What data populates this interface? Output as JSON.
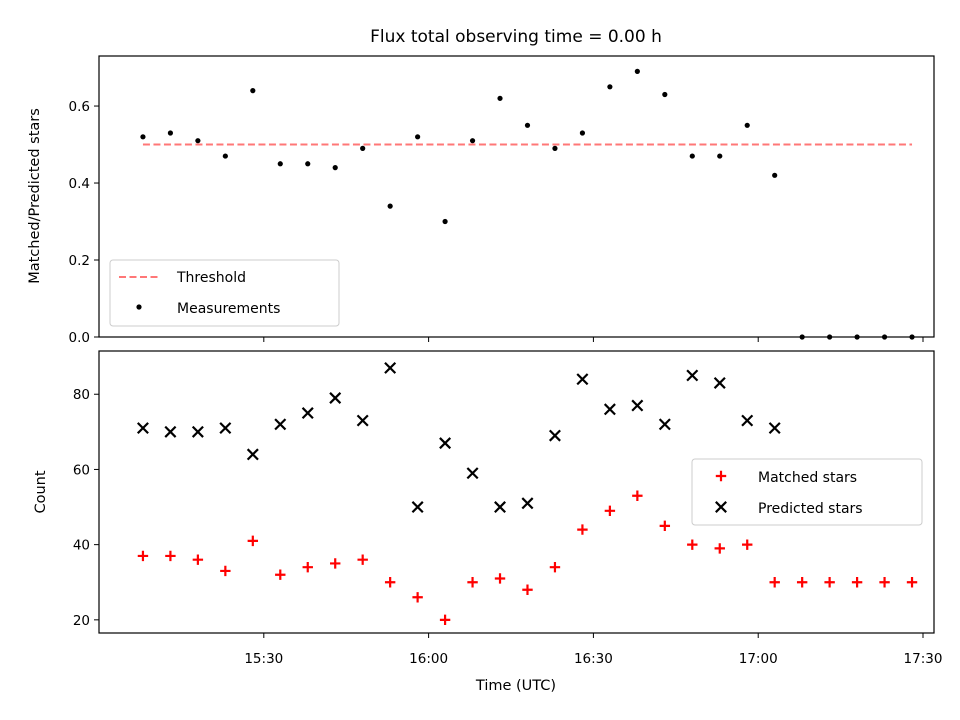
{
  "title": "Flux total observing time = 0.00 h",
  "chart_data": [
    {
      "type": "scatter",
      "ylabel": "Matched/Predicted stars",
      "ylim": [
        0,
        0.73
      ],
      "yticks": [
        0.0,
        0.2,
        0.4,
        0.6
      ],
      "ytick_labels": [
        "0.0",
        "0.2",
        "0.4",
        "0.6"
      ],
      "xlim": [
        "15:00",
        "17:32"
      ],
      "legend_position": "lower-left",
      "threshold": {
        "name": "Threshold",
        "value": 0.5,
        "x": [
          "15:08",
          "17:28"
        ],
        "color": "#ff7777",
        "style": "dashed"
      },
      "series": [
        {
          "name": "Measurements",
          "color": "#000000",
          "marker": "dot",
          "x": [
            "15:08",
            "15:13",
            "15:18",
            "15:23",
            "15:28",
            "15:33",
            "15:38",
            "15:43",
            "15:48",
            "15:53",
            "15:58",
            "16:03",
            "16:08",
            "16:13",
            "16:18",
            "16:23",
            "16:28",
            "16:33",
            "16:38",
            "16:43",
            "16:48",
            "16:53",
            "16:58",
            "17:03",
            "17:08",
            "17:13",
            "17:18",
            "17:23",
            "17:28"
          ],
          "y": [
            0.52,
            0.53,
            0.51,
            0.47,
            0.64,
            0.45,
            0.45,
            0.44,
            0.49,
            0.34,
            0.52,
            0.3,
            0.51,
            0.62,
            0.55,
            0.49,
            0.53,
            0.65,
            0.69,
            0.63,
            0.47,
            0.47,
            0.55,
            0.42,
            0.0,
            0.0,
            0.0,
            0.0,
            0.0
          ]
        }
      ]
    },
    {
      "type": "scatter",
      "ylabel": "Count",
      "xlabel": "Time (UTC)",
      "ylim": [
        16.5,
        91.5
      ],
      "yticks": [
        20,
        40,
        60,
        80
      ],
      "ytick_labels": [
        "20",
        "40",
        "60",
        "80"
      ],
      "xlim": [
        "15:00",
        "17:32"
      ],
      "xticks": [
        "15:30",
        "16:00",
        "16:30",
        "17:00",
        "17:30"
      ],
      "legend_position": "center-right",
      "series": [
        {
          "name": "Matched stars",
          "color": "#ff0000",
          "marker": "plus",
          "x": [
            "15:08",
            "15:13",
            "15:18",
            "15:23",
            "15:28",
            "15:33",
            "15:38",
            "15:43",
            "15:48",
            "15:53",
            "15:58",
            "16:03",
            "16:08",
            "16:13",
            "16:18",
            "16:23",
            "16:28",
            "16:33",
            "16:38",
            "16:43",
            "16:48",
            "16:53",
            "16:58",
            "17:03",
            "17:08",
            "17:13",
            "17:18",
            "17:23",
            "17:28"
          ],
          "y": [
            37,
            37,
            36,
            33,
            41,
            32,
            34,
            35,
            36,
            30,
            26,
            20,
            30,
            31,
            28,
            34,
            44,
            49,
            53,
            45,
            40,
            39,
            40,
            30,
            30,
            30,
            30,
            30,
            30
          ]
        },
        {
          "name": "Predicted stars",
          "color": "#000000",
          "marker": "x",
          "x": [
            "15:08",
            "15:13",
            "15:18",
            "15:23",
            "15:28",
            "15:33",
            "15:38",
            "15:43",
            "15:48",
            "15:53",
            "15:58",
            "16:03",
            "16:08",
            "16:13",
            "16:18",
            "16:23",
            "16:28",
            "16:33",
            "16:38",
            "16:43",
            "16:48",
            "16:53",
            "16:58",
            "17:03"
          ],
          "y": [
            71,
            70,
            70,
            71,
            64,
            72,
            75,
            79,
            73,
            87,
            50,
            67,
            59,
            50,
            51,
            69,
            84,
            76,
            77,
            72,
            85,
            83,
            73,
            71
          ]
        }
      ]
    }
  ]
}
